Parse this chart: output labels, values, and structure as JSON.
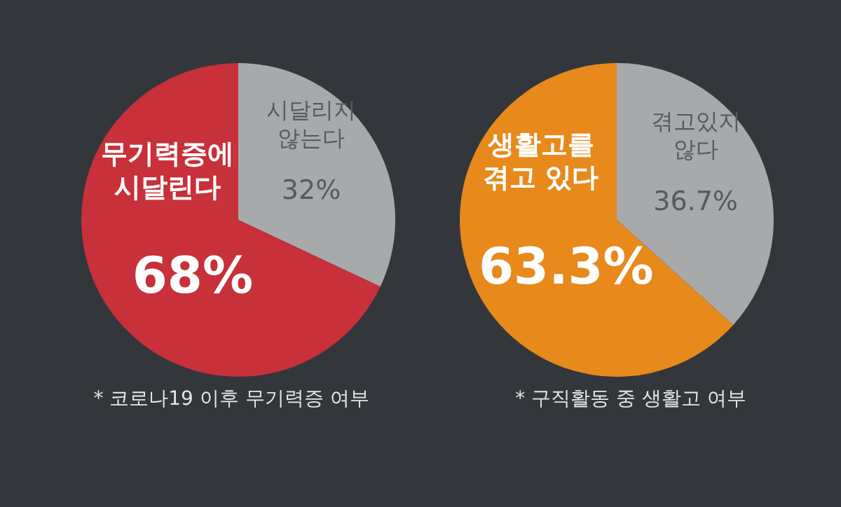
{
  "chart_data": [
    {
      "type": "pie",
      "categories": [
        "시달리지\n않는다",
        "무기력증에\n시달린다"
      ],
      "values": [
        32,
        68
      ],
      "colors": [
        "#a7a9ab",
        "#c8303a"
      ],
      "value_labels": [
        "32%",
        "68%"
      ],
      "annotations": [
        "* 코로나19 이후 무기력증 여부"
      ]
    },
    {
      "type": "pie",
      "categories": [
        "겪고있지\n않다",
        "생활고를\n겪고 있다"
      ],
      "values": [
        36.7,
        63.3
      ],
      "colors": [
        "#a7a9ab",
        "#e8891b"
      ],
      "value_labels": [
        "36.7%",
        "63.3%"
      ],
      "annotations": [
        "* 구직활동 중 생활고 여부"
      ]
    }
  ]
}
